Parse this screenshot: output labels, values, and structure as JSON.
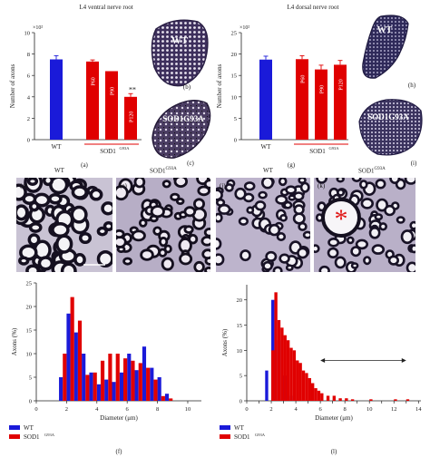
{
  "chart_data": [
    {
      "id": "a",
      "type": "bar",
      "title": "L4 ventral nerve root",
      "ylabel": "Number of axons",
      "y_multiplier": "×10²",
      "ylim": [
        0,
        10
      ],
      "yticks": [
        0,
        2,
        4,
        6,
        8,
        10
      ],
      "categories": [
        "WT",
        "P60",
        "P90",
        "P120"
      ],
      "values": [
        7.5,
        7.3,
        6.4,
        4.0
      ],
      "errors": [
        0.35,
        0.15,
        0.0,
        0.3
      ],
      "colors": [
        "#1a1ad9",
        "#e00000",
        "#e00000",
        "#e00000"
      ],
      "group_label": "SOD1",
      "group_superscript": "G93A",
      "significance": "**",
      "panel_label": "(a)"
    },
    {
      "id": "g",
      "type": "bar",
      "title": "L4 dorsal nerve root",
      "ylabel": "Number of axons",
      "y_multiplier": "×10²",
      "ylim": [
        0,
        25
      ],
      "yticks": [
        0,
        5,
        10,
        15,
        20,
        25
      ],
      "categories": [
        "WT",
        "P60",
        "P90",
        "P120"
      ],
      "values": [
        18.7,
        18.8,
        16.4,
        17.5
      ],
      "errors": [
        0.8,
        0.8,
        1.0,
        1.0
      ],
      "colors": [
        "#1a1ad9",
        "#e00000",
        "#e00000",
        "#e00000"
      ],
      "group_label": "SOD1",
      "group_superscript": "G93A",
      "panel_label": "(g)"
    },
    {
      "id": "f",
      "type": "bar",
      "subtype": "histogram",
      "xlabel": "Diameter (μm)",
      "ylabel": "Axons (%)",
      "xlim": [
        0,
        10.9
      ],
      "ylim": [
        0,
        25
      ],
      "xticks": [
        0,
        2,
        4,
        6,
        8,
        10
      ],
      "yticks": [
        0,
        5,
        10,
        15,
        20,
        25
      ],
      "bin_width": 0.25,
      "series": [
        {
          "name": "WT",
          "color": "#1a1ad9",
          "x": [
            1.5,
            2.0,
            2.5,
            3.0,
            3.5,
            4.0,
            4.5,
            5.0,
            5.5,
            6.0,
            6.5,
            7.0,
            7.5,
            8.0,
            8.5
          ],
          "values": [
            5,
            18.5,
            14.5,
            10,
            6,
            3.5,
            4.5,
            4,
            6,
            10,
            6.5,
            11.5,
            7,
            5,
            1.5
          ]
        },
        {
          "name": "SOD1",
          "superscript": "G93A",
          "color": "#e00000",
          "x": [
            1.75,
            2.25,
            2.75,
            3.25,
            3.75,
            4.25,
            4.75,
            5.25,
            5.75,
            6.25,
            6.75,
            7.25,
            7.75,
            8.25,
            8.75
          ],
          "values": [
            10,
            22,
            17,
            5.5,
            6,
            8.5,
            10,
            10,
            9,
            8.5,
            8,
            7,
            4.5,
            1,
            0.5
          ]
        }
      ],
      "panel_label": "(f)"
    },
    {
      "id": "l",
      "type": "bar",
      "subtype": "histogram",
      "xlabel": "Diameter (μm)",
      "ylabel": "Axons (%)",
      "xlim": [
        0,
        14.2
      ],
      "ylim": [
        0,
        23
      ],
      "xticks": [
        0,
        1,
        2,
        3,
        4,
        5,
        6,
        7,
        8,
        9,
        10,
        11,
        12,
        13,
        14
      ],
      "xtick_labels": [
        "0",
        "",
        "2",
        "",
        "4",
        "",
        "6",
        "",
        "8",
        "",
        "10",
        "",
        "12",
        "",
        "14"
      ],
      "yticks": [
        0,
        5,
        10,
        15,
        20
      ],
      "bin_width": 0.25,
      "series": [
        {
          "name": "WT",
          "color": "#1a1ad9",
          "x": [
            1.5,
            2.0,
            2.5,
            3.0,
            3.5
          ],
          "values": [
            6,
            20,
            12,
            5,
            1
          ]
        },
        {
          "name": "SOD1",
          "superscript": "G93A",
          "color": "#e00000",
          "x": [
            2.0,
            2.25,
            2.5,
            2.75,
            3.0,
            3.25,
            3.5,
            3.75,
            4.0,
            4.25,
            4.5,
            4.75,
            5.0,
            5.25,
            5.5,
            5.75,
            6.0,
            6.5,
            7.0,
            7.5,
            8.0,
            8.5,
            10.0,
            12.0,
            13.0
          ],
          "values": [
            10,
            21.5,
            16,
            14.5,
            13,
            12,
            10.5,
            10,
            8,
            7.5,
            6,
            5.5,
            4.5,
            3.5,
            2.5,
            2,
            1.5,
            1,
            1,
            0.5,
            0.5,
            0.3,
            0.3,
            0.3,
            0.3
          ]
        }
      ],
      "annotation": "double-headed arrow from 6 to 13 μm at 8%",
      "panel_label": "(l)"
    }
  ],
  "micrographs": [
    {
      "id": "b",
      "label": "WT",
      "panel": "(b)"
    },
    {
      "id": "c",
      "label": "SOD1G93A",
      "panel": "(c)"
    },
    {
      "id": "h",
      "label": "WT",
      "panel": "(h)"
    },
    {
      "id": "i",
      "label": "SOD1G93A",
      "panel": "(i)"
    },
    {
      "id": "d",
      "label": "WT",
      "panel": "(d)"
    },
    {
      "id": "e",
      "label": "SOD1",
      "label_sup": "G93A",
      "panel": "(e)"
    },
    {
      "id": "j",
      "label": "WT",
      "panel": "(j)"
    },
    {
      "id": "k",
      "label": "SOD1",
      "label_sup": "G93A",
      "panel": "(k)",
      "marker": "*"
    }
  ]
}
